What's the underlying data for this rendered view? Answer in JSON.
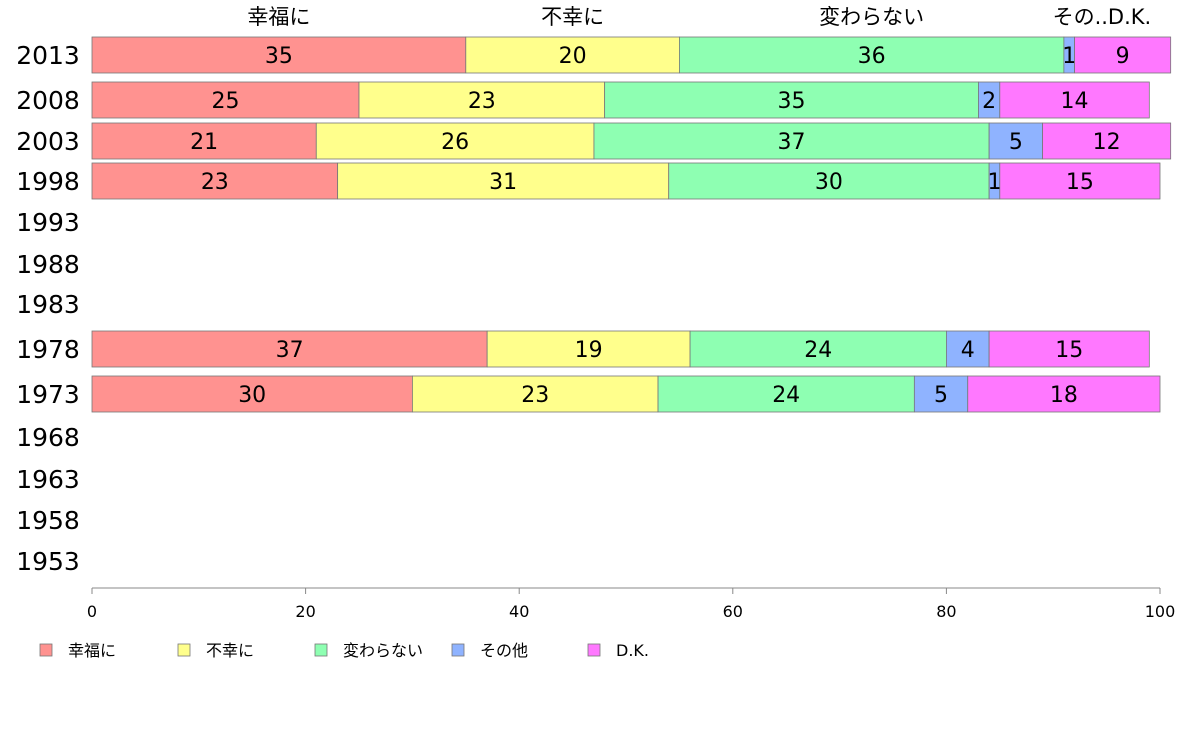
{
  "chart_data": {
    "type": "bar",
    "orientation": "horizontal",
    "stacked": true,
    "categories": [
      "2013",
      "2008",
      "2003",
      "1998",
      "1993",
      "1988",
      "1983",
      "1978",
      "1973",
      "1968",
      "1963",
      "1958",
      "1953"
    ],
    "series": [
      {
        "name": "幸福に",
        "header": "幸福に",
        "color": "#ff9290",
        "values": [
          35,
          25,
          21,
          23,
          null,
          null,
          null,
          37,
          30,
          null,
          null,
          null,
          null
        ]
      },
      {
        "name": "不幸に",
        "header": "不幸に",
        "color": "#ffff8c",
        "values": [
          20,
          23,
          26,
          31,
          null,
          null,
          null,
          19,
          23,
          null,
          null,
          null,
          null
        ]
      },
      {
        "name": "変わらない",
        "header": "変わらない",
        "color": "#8effb2",
        "values": [
          36,
          35,
          37,
          30,
          null,
          null,
          null,
          24,
          24,
          null,
          null,
          null,
          null
        ]
      },
      {
        "name": "その他",
        "header": "その..",
        "color": "#8fb3ff",
        "values": [
          1,
          2,
          5,
          1,
          null,
          null,
          null,
          4,
          5,
          null,
          null,
          null,
          null
        ]
      },
      {
        "name": "D.K.",
        "header": "D.K.",
        "color": "#ff78ff",
        "values": [
          9,
          14,
          12,
          15,
          null,
          null,
          null,
          15,
          18,
          null,
          null,
          null,
          null
        ]
      }
    ],
    "xlim": [
      0,
      100
    ],
    "xticks": [
      "0",
      "20",
      "40",
      "60",
      "80",
      "100"
    ],
    "legend_position": "bottom-left",
    "grid": false
  }
}
